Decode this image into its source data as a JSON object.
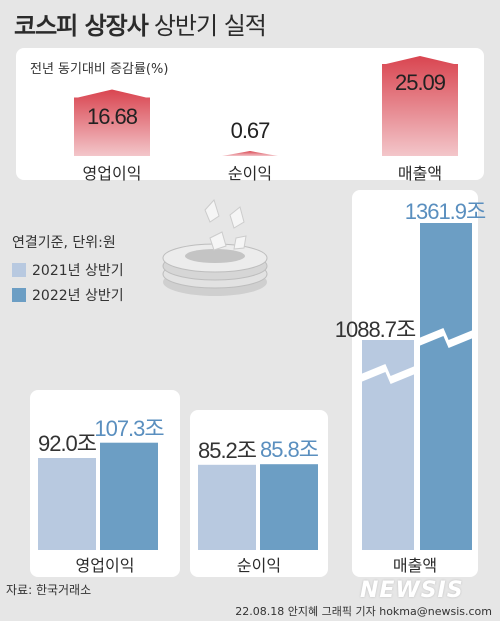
{
  "header": {
    "title_bold": "코스피 상장사",
    "title_rest": "상반기 실적"
  },
  "top": {
    "caption": "전년 동기대비 증감률(%)"
  },
  "note": "연결기준, 단위:원",
  "legend": {
    "y2021": "2021년 상반기",
    "y2022": "2022년 상반기"
  },
  "colors": {
    "red": "#d94550",
    "light_blue": "#b8c9e0",
    "dark_blue": "#6c9ec4",
    "value_blue": "#5a8fbf"
  },
  "source": "자료: 한국거래소",
  "credit": "22.08.18 안지혜 그래픽 기자 hokma@newsis.com",
  "watermark": "NEWSIS",
  "chart_data": [
    {
      "type": "bar",
      "title": "전년 동기대비 증감률(%)",
      "categories": [
        "영업이익",
        "순이익",
        "매출액"
      ],
      "values": [
        16.68,
        0.67,
        25.09
      ],
      "labels": [
        "16.68",
        "0.67",
        "25.09"
      ],
      "ylim": [
        0,
        25.09
      ]
    },
    {
      "type": "bar",
      "categories": [
        "영업이익",
        "순이익",
        "매출액"
      ],
      "series": [
        {
          "name": "2021년 상반기",
          "values": [
            92.0,
            85.2,
            1088.7
          ],
          "labels": [
            "92.0조",
            "85.2조",
            "1088.7조"
          ]
        },
        {
          "name": "2022년 상반기",
          "values": [
            107.3,
            85.8,
            1361.9
          ],
          "labels": [
            "107.3조",
            "85.8조",
            "1361.9조"
          ]
        }
      ],
      "axis_break": true
    }
  ]
}
